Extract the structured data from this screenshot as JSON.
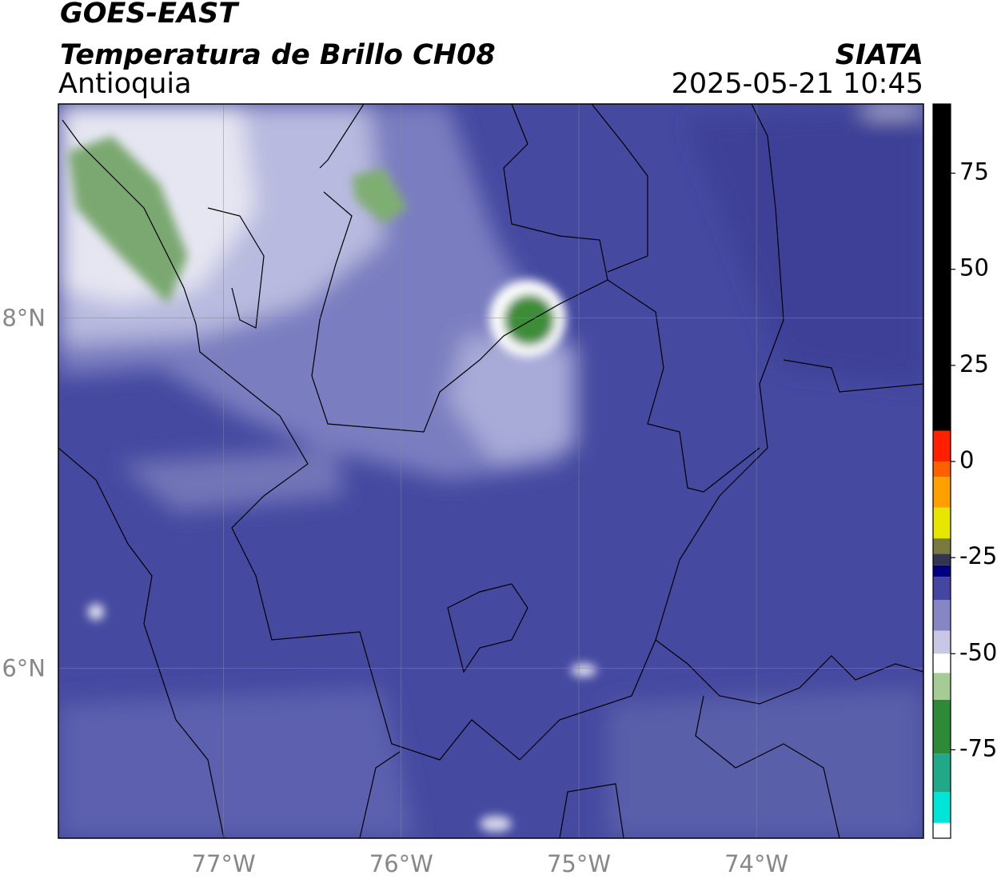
{
  "map": {
    "title": "GOES-EAST",
    "subtitle": "Temperatura de Brillo CH08",
    "region": "Antioquia",
    "agency": "SIATA",
    "datetime": "2025-05-21 10:45",
    "xlim": [
      -77.93,
      -73.06
    ],
    "ylim": [
      5.03,
      9.22
    ],
    "xticks": [
      {
        "value": -77,
        "label": "77°W"
      },
      {
        "value": -76,
        "label": "76°W"
      },
      {
        "value": -75,
        "label": "75°W"
      },
      {
        "value": -74,
        "label": "74°W"
      }
    ],
    "yticks": [
      {
        "value": 6,
        "label": "6°N"
      },
      {
        "value": 8,
        "label": "8°N"
      }
    ],
    "grid": true,
    "colorbar": {
      "lim": [
        -98,
        93
      ],
      "ticks": [
        -75,
        -50,
        -25,
        0,
        25,
        50,
        75
      ],
      "colors": [
        {
          "value": -98,
          "color": "#ffffff"
        },
        {
          "value": -94,
          "color": "#00e5d8"
        },
        {
          "value": -86,
          "color": "#20a888"
        },
        {
          "value": -76,
          "color": "#2e8a36"
        },
        {
          "value": -62,
          "color": "#a6cc96"
        },
        {
          "value": -55,
          "color": "#ffffff"
        },
        {
          "value": -50,
          "color": "#c8c8e6"
        },
        {
          "value": -44,
          "color": "#8686c4"
        },
        {
          "value": -36,
          "color": "#4446a2"
        },
        {
          "value": -30,
          "color": "#000080"
        },
        {
          "value": -27,
          "color": "#34344e"
        },
        {
          "value": -24,
          "color": "#7a7a40"
        },
        {
          "value": -20,
          "color": "#e6e600"
        },
        {
          "value": -12,
          "color": "#ffa000"
        },
        {
          "value": -4,
          "color": "#ff6000"
        },
        {
          "value": 0,
          "color": "#ff2000"
        },
        {
          "value": 8,
          "color": "#000000"
        }
      ]
    }
  }
}
